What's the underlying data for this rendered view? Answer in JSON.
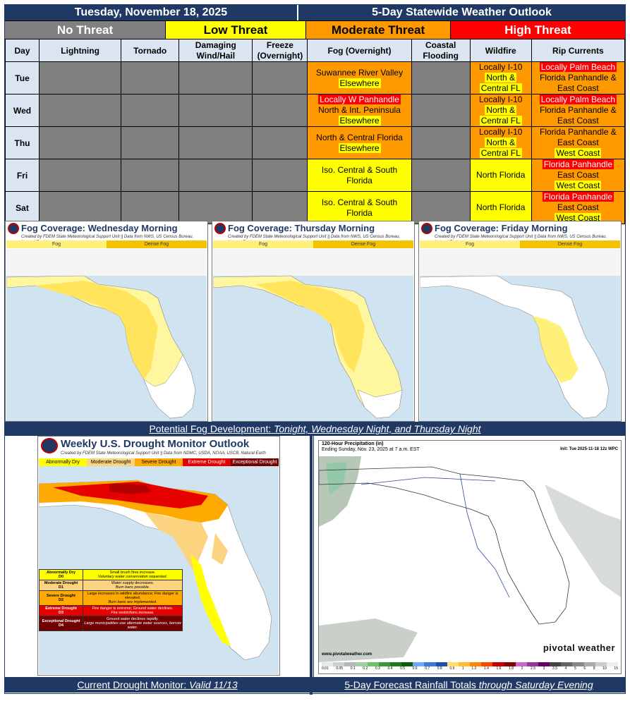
{
  "header": {
    "date": "Tuesday, November 18, 2025",
    "title": "5-Day Statewide Weather Outlook"
  },
  "legend": {
    "none": "No Threat",
    "low": "Low Threat",
    "moderate": "Moderate Threat",
    "high": "High Threat"
  },
  "colors": {
    "none": "#808080",
    "low": "#ffff00",
    "moderate": "#ff9900",
    "high": "#ff0000",
    "header": "#1f3864"
  },
  "columns": {
    "day": "Day",
    "lightning": "Lightning",
    "tornado": "Tornado",
    "wind_line1": "Damaging",
    "wind_line2": "Wind/Hail",
    "freeze_line1": "Freeze",
    "freeze_line2": "(Overnight)",
    "fog": "Fog (Overnight)",
    "coastal_line1": "Coastal",
    "coastal_line2": "Flooding",
    "wildfire": "Wildfire",
    "rip": "Rip Currents"
  },
  "rows": [
    {
      "day": "Tue",
      "fog": [
        {
          "text": "Suwannee River Valley",
          "level": "moderate"
        },
        {
          "text": "Elsewhere",
          "level": "low"
        }
      ],
      "wildfire": [
        {
          "text": "Locally I-10",
          "level": "moderate"
        },
        {
          "text": "North &",
          "level": "low"
        },
        {
          "text": "Central FL",
          "level": "low"
        }
      ],
      "rip": [
        {
          "text": "Locally Palm Beach",
          "level": "high"
        },
        {
          "text": "Florida Panhandle &",
          "level": "moderate"
        },
        {
          "text": "East Coast",
          "level": "moderate"
        }
      ]
    },
    {
      "day": "Wed",
      "fog": [
        {
          "text": "Locally W Panhandle",
          "level": "high"
        },
        {
          "text": "North & Int. Peninsula",
          "level": "moderate"
        },
        {
          "text": "Elsewhere",
          "level": "low"
        }
      ],
      "wildfire": [
        {
          "text": "Locally I-10",
          "level": "moderate"
        },
        {
          "text": "North &",
          "level": "low"
        },
        {
          "text": "Central FL",
          "level": "low"
        }
      ],
      "rip": [
        {
          "text": "Locally Palm Beach",
          "level": "high"
        },
        {
          "text": "Florida Panhandle &",
          "level": "moderate"
        },
        {
          "text": "East Coast",
          "level": "moderate"
        }
      ]
    },
    {
      "day": "Thu",
      "fog": [
        {
          "text": "North & Central Florida",
          "level": "moderate"
        },
        {
          "text": "Elsewhere",
          "level": "low"
        }
      ],
      "wildfire": [
        {
          "text": "Locally I-10",
          "level": "moderate"
        },
        {
          "text": "North &",
          "level": "low"
        },
        {
          "text": "Central FL",
          "level": "low"
        }
      ],
      "rip": [
        {
          "text": "Florida Panhandle &",
          "level": "moderate"
        },
        {
          "text": "East Coast",
          "level": "moderate"
        },
        {
          "text": "West Coast",
          "level": "low"
        }
      ]
    },
    {
      "day": "Fri",
      "fog": [
        {
          "text": "Iso. Central & South",
          "level": "low"
        },
        {
          "text": "Florida",
          "level": "low"
        }
      ],
      "wildfire": [
        {
          "text": "North Florida",
          "level": "low"
        }
      ],
      "rip": [
        {
          "text": "Florida Panhandle",
          "level": "high"
        },
        {
          "text": "East Coast",
          "level": "moderate"
        },
        {
          "text": "West Coast",
          "level": "low"
        }
      ]
    },
    {
      "day": "Sat",
      "fog": [
        {
          "text": "Iso. Central & South",
          "level": "low"
        },
        {
          "text": "Florida",
          "level": "low"
        }
      ],
      "wildfire": [
        {
          "text": "North Florida",
          "level": "low"
        }
      ],
      "rip": [
        {
          "text": "Florida Panhandle",
          "level": "high"
        },
        {
          "text": "East Coast",
          "level": "moderate"
        },
        {
          "text": "West Coast",
          "level": "low"
        }
      ]
    }
  ],
  "fog_panels": {
    "credit": "Created by FDEM State Meteorological Support Unit || Data from NWS, US Census Bureau, Natural Earth",
    "legend_fog": "Fog",
    "legend_dense": "Dense Fog",
    "titles": [
      "Fog Coverage: Wednesday Morning",
      "Fog Coverage: Thursday Morning",
      "Fog Coverage: Friday Morning"
    ],
    "caption_plain": "Potential Fog Development: ",
    "caption_italic": "Tonight, Wednesday Night, and Thursday Night"
  },
  "drought": {
    "title": "Weekly U.S. Drought Monitor Outlook",
    "credit": "Created by FDEM State Meteorological Support Unit || Data from NDMC, USDA, NOAA, USCB, Natural Earth",
    "legend": [
      "Abnormally Dry",
      "Moderate Drought",
      "Severe Drought",
      "Extreme Drought",
      "Exceptional Drought"
    ],
    "table": [
      {
        "cat": "Abnormally Dry",
        "code": "D0",
        "desc": "Small brush fires increase.",
        "sub": "Voluntary water conservation requested."
      },
      {
        "cat": "Moderate Drought",
        "code": "D1",
        "desc": "Water supply decreases.",
        "sub": "Burn bans possible."
      },
      {
        "cat": "Severe Drought",
        "code": "D2",
        "desc": "Large increases in wildfire abundance; Fire danger is elevated.",
        "sub": "Burn bans are implemented."
      },
      {
        "cat": "Extreme Drought",
        "code": "D3",
        "desc": "Fire danger is extreme; Ground water declines.",
        "sub": "Fire restrictions increase."
      },
      {
        "cat": "Exceptional Drought",
        "code": "D4",
        "desc": "Ground water declines rapidly.",
        "sub": "Large municipalities use alternate water sources, borrow water."
      }
    ],
    "caption_plain": "Current Drought Monitor: ",
    "caption_italic": "Valid 11/13"
  },
  "rain": {
    "title": "120-Hour Precipitation (in)",
    "ending": "Ending Sunday, Nov. 23, 2025 at 7 a.m. EST",
    "init": "Init: Tue 2025-11-18 12z WPC",
    "brand": "pivotal weather",
    "url": "www.pivotalweather.com",
    "scale": [
      "0.01",
      "0.05",
      "0.1",
      "0.2",
      "0.3",
      "0.4",
      "0.5",
      "0.6",
      "0.7",
      "0.8",
      "0.9",
      "1",
      "1.2",
      "1.4",
      "1.6",
      "1.8",
      "2",
      "2.5",
      "3",
      "3.5",
      "4",
      "5",
      "6",
      "8",
      "10",
      "15"
    ],
    "caption_plain": "5-Day Forecast Rainfall Totals ",
    "caption_italic": "through Saturday Evening"
  }
}
